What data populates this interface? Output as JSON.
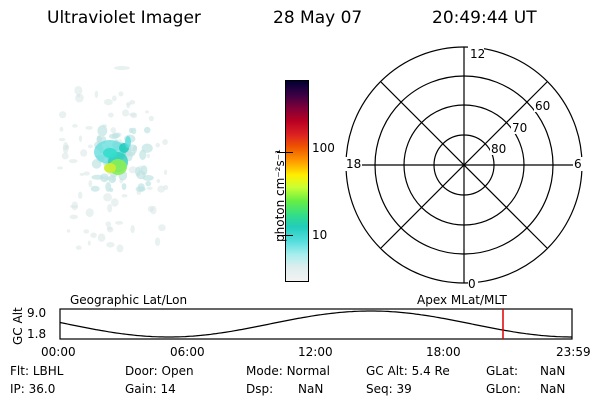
{
  "header": {
    "instrument": "Ultraviolet Imager",
    "date": "28 May 07",
    "time": "20:49:44 UT"
  },
  "colorbar": {
    "label": "photon cm⁻²s⁻¹",
    "ticks": [
      "100",
      "10"
    ],
    "colors": [
      "#000033",
      "#3a0044",
      "#7a003a",
      "#b80022",
      "#dd2222",
      "#ee5500",
      "#ff9900",
      "#ffee00",
      "#ccff33",
      "#66ee44",
      "#33dd88",
      "#22ccbb",
      "#55dddd",
      "#aaeeee",
      "#ddeeee",
      "#f2f2f2"
    ]
  },
  "polar": {
    "mlt_labels": {
      "top": "12",
      "left": "18",
      "right": "6",
      "bottom": "0"
    },
    "lat_labels": [
      "60",
      "70",
      "80"
    ]
  },
  "timeline": {
    "left_label": "Geographic Lat/Lon",
    "right_label": "Apex MLat/MLT",
    "ylabel": "GC Alt",
    "y_ticks": [
      "9.0",
      "1.8"
    ],
    "x_ticks": [
      "00:00",
      "06:00",
      "12:00",
      "18:00",
      "23:59"
    ],
    "marker_color": "#dd0000"
  },
  "footer": {
    "row1": [
      {
        "label": "Flt:",
        "value": "LBHL"
      },
      {
        "label": "Door:",
        "value": "Open"
      },
      {
        "label": "Mode:",
        "value": "Normal"
      },
      {
        "label": "GC Alt:",
        "value": "5.4 Re"
      },
      {
        "label": "GLat:",
        "value": "NaN"
      }
    ],
    "row2": [
      {
        "label": "IP:",
        "value": "36.0"
      },
      {
        "label": "Gain:",
        "value": "14"
      },
      {
        "label": "Dsp:",
        "value": "NaN"
      },
      {
        "label": "Seq:",
        "value": "39"
      },
      {
        "label": "GLon:",
        "value": "NaN"
      }
    ]
  }
}
